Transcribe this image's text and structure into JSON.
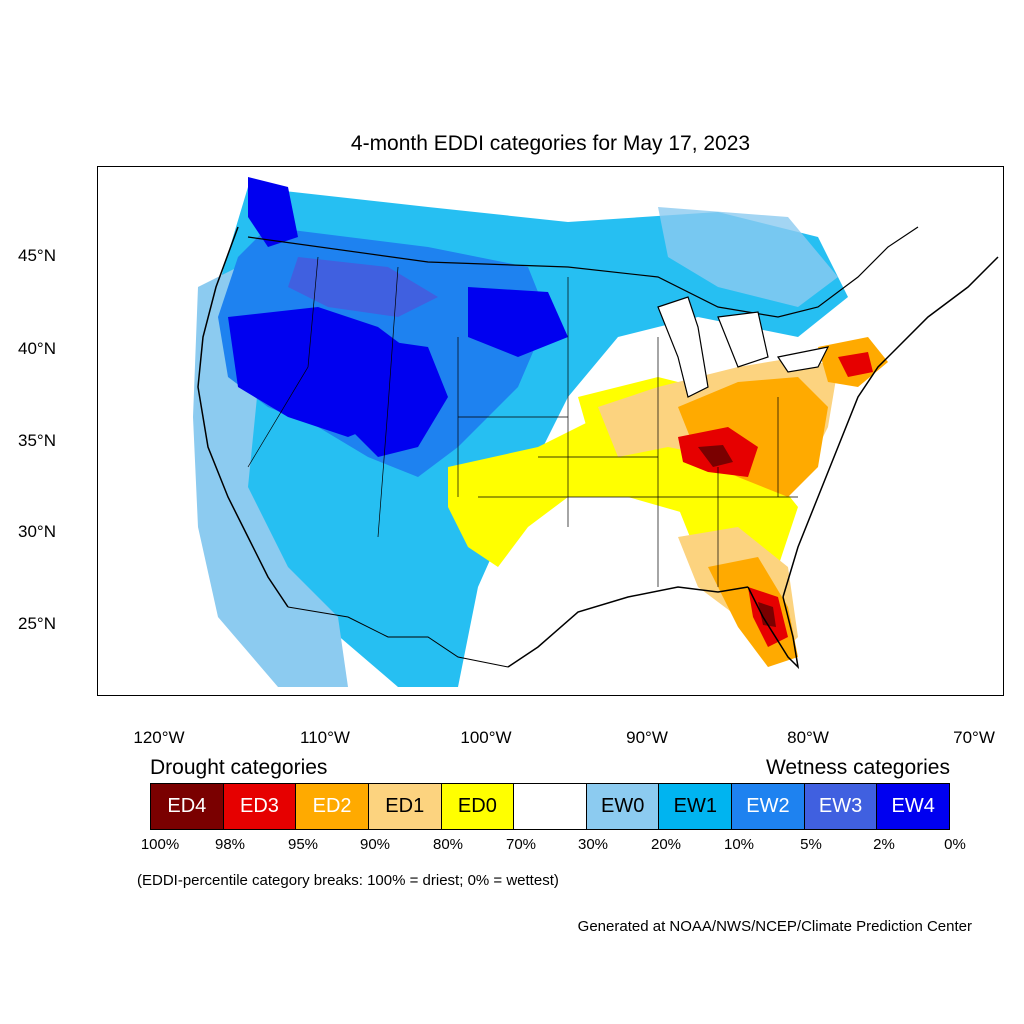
{
  "title": "4-month EDDI categories for May 17, 2023",
  "axes": {
    "lat_labels": [
      "45°N",
      "40°N",
      "35°N",
      "30°N",
      "25°N"
    ],
    "lon_labels": [
      "120°W",
      "110°W",
      "100°W",
      "90°W",
      "80°W",
      "70°W"
    ]
  },
  "legend": {
    "drought_title": "Drought categories",
    "wetness_title": "Wetness categories",
    "categories": [
      {
        "label": "ED4",
        "color": "#7a0000",
        "text_color": "#ffffff"
      },
      {
        "label": "ED3",
        "color": "#e60000",
        "text_color": "#ffffff"
      },
      {
        "label": "ED2",
        "color": "#ffaa00",
        "text_color": "#ffffff"
      },
      {
        "label": "ED1",
        "color": "#fcd37f",
        "text_color": "#000000"
      },
      {
        "label": "ED0",
        "color": "#ffff00",
        "text_color": "#000000"
      },
      {
        "label": "",
        "color": "#ffffff",
        "text_color": "#000000"
      },
      {
        "label": "EW0",
        "color": "#8ccbf0",
        "text_color": "#000000"
      },
      {
        "label": "EW1",
        "color": "#00b4f0",
        "text_color": "#000000"
      },
      {
        "label": "EW2",
        "color": "#1e82f0",
        "text_color": "#ffffff"
      },
      {
        "label": "EW3",
        "color": "#4060e0",
        "text_color": "#ffffff"
      },
      {
        "label": "EW4",
        "color": "#0000f0",
        "text_color": "#ffffff"
      }
    ],
    "breaks": [
      "100%",
      "98%",
      "95%",
      "90%",
      "80%",
      "70%",
      "30%",
      "20%",
      "10%",
      "5%",
      "2%",
      "0%"
    ]
  },
  "note": "(EDDI-percentile category breaks: 100% = driest; 0% = wettest)",
  "credit": "Generated at NOAA/NWS/NCEP/Climate Prediction Center"
}
